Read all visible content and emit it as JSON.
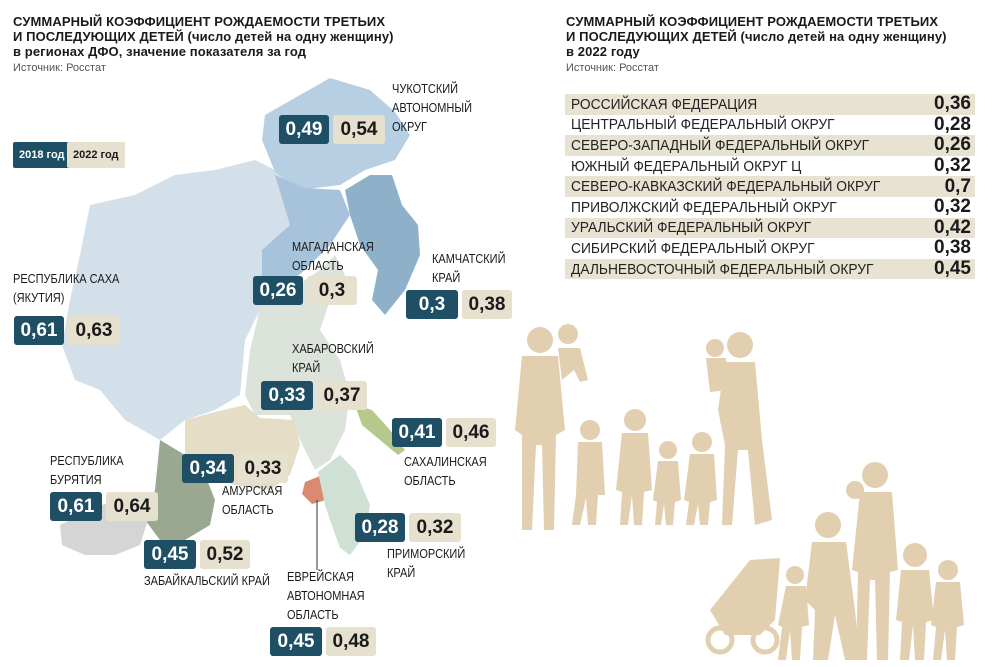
{
  "left_title": {
    "line1": "СУММАРНЫЙ КОЭФФИЦИЕНТ РОЖДАЕМОСТИ ТРЕТЬИХ",
    "line2": "И ПОСЛЕДУЮЩИХ ДЕТЕЙ (число детей на одну женщину)",
    "line3": "в регионах ДФО, значение показателя за год",
    "source": "Источник: Росстат"
  },
  "right_title": {
    "line1": "СУММАРНЫЙ КОЭФФИЦИЕНТ РОЖДАЕМОСТИ ТРЕТЬИХ",
    "line2": "И ПОСЛЕДУЮЩИХ ДЕТЕЙ (число детей на одну женщину)",
    "line3": "в 2022 году",
    "source": "Источник: Росстат"
  },
  "legend": {
    "y2018": "2018 год",
    "y2022": "2022 год"
  },
  "colors": {
    "dark": "#1f4f64",
    "light": "#e6e0cf",
    "silhouette": "#e2cfb0"
  },
  "regions": [
    {
      "id": "chukotka",
      "label_lines": [
        "ЧУКОТСКИЙ",
        "АВТОНОМНЫЙ",
        "ОКРУГ"
      ],
      "v2018": "0,49",
      "v2022": "0,54"
    },
    {
      "id": "magadan",
      "label_lines": [
        "МАГАДАНСКАЯ",
        "ОБЛАСТЬ"
      ],
      "v2018": "0,26",
      "v2022": "0,3"
    },
    {
      "id": "kamchatka",
      "label_lines": [
        "КАМЧАТСКИЙ",
        "КРАЙ"
      ],
      "v2018": "0,3",
      "v2022": "0,38"
    },
    {
      "id": "sakha",
      "label_lines": [
        "РЕСПУБЛИКА САХА",
        "(ЯКУТИЯ)"
      ],
      "v2018": "0,61",
      "v2022": "0,63"
    },
    {
      "id": "khabarovsk",
      "label_lines": [
        "ХАБАРОВСКИЙ",
        "КРАЙ"
      ],
      "v2018": "0,33",
      "v2022": "0,37"
    },
    {
      "id": "sakhalin",
      "label_lines": [
        "САХАЛИНСКАЯ",
        "ОБЛАСТЬ"
      ],
      "v2018": "0,41",
      "v2022": "0,46"
    },
    {
      "id": "buryatia",
      "label_lines": [
        "РЕСПУБЛИКА",
        "БУРЯТИЯ"
      ],
      "v2018": "0,61",
      "v2022": "0,64"
    },
    {
      "id": "amur",
      "label_lines": [
        "АМУРСКАЯ",
        "ОБЛАСТЬ"
      ],
      "v2018": "0,34",
      "v2022": "0,33"
    },
    {
      "id": "primorye",
      "label_lines": [
        "ПРИМОРСКИЙ",
        "КРАЙ"
      ],
      "v2018": "0,28",
      "v2022": "0,32"
    },
    {
      "id": "zabaikalsky",
      "label_lines": [
        "ЗАБАЙКАЛЬСКИЙ КРАЙ"
      ],
      "v2018": "0,45",
      "v2022": "0,52"
    },
    {
      "id": "jewish",
      "label_lines": [
        "ЕВРЕЙСКАЯ",
        "АВТОНОМНАЯ",
        "ОБЛАСТЬ"
      ],
      "v2018": "0,45",
      "v2022": "0,48"
    }
  ],
  "table": [
    {
      "name": "РОССИЙСКАЯ ФЕДЕРАЦИЯ",
      "value": "0,36"
    },
    {
      "name": "ЦЕНТРАЛЬНЫЙ ФЕДЕРАЛЬНЫЙ ОКРУГ",
      "value": "0,28"
    },
    {
      "name": "СЕВЕРО-ЗАПАДНЫЙ ФЕДЕРАЛЬНЫЙ ОКРУГ",
      "value": "0,26"
    },
    {
      "name": "ЮЖНЫЙ ФЕДЕРАЛЬНЫЙ ОКРУГ ц",
      "value": "0,32"
    },
    {
      "name": "СЕВЕРО-КАВКАЗСКИЙ ФЕДЕРАЛЬНЫЙ ОКРУГ",
      "value": "0,7"
    },
    {
      "name": "ПРИВОЛЖСКИЙ ФЕДЕРАЛЬНЫЙ ОКРУГ",
      "value": "0,32"
    },
    {
      "name": "УРАЛЬСКИЙ ФЕДЕРАЛЬНЫЙ ОКРУГ",
      "value": "0,42"
    },
    {
      "name": "СИБИРСКИЙ ФЕДЕРАЛЬНЫЙ ОКРУГ",
      "value": "0,38"
    },
    {
      "name": "ДАЛЬНЕВОСТОЧНЫЙ ФЕДЕРАЛЬНЫЙ ОКРУГ",
      "value": "0,45"
    }
  ]
}
